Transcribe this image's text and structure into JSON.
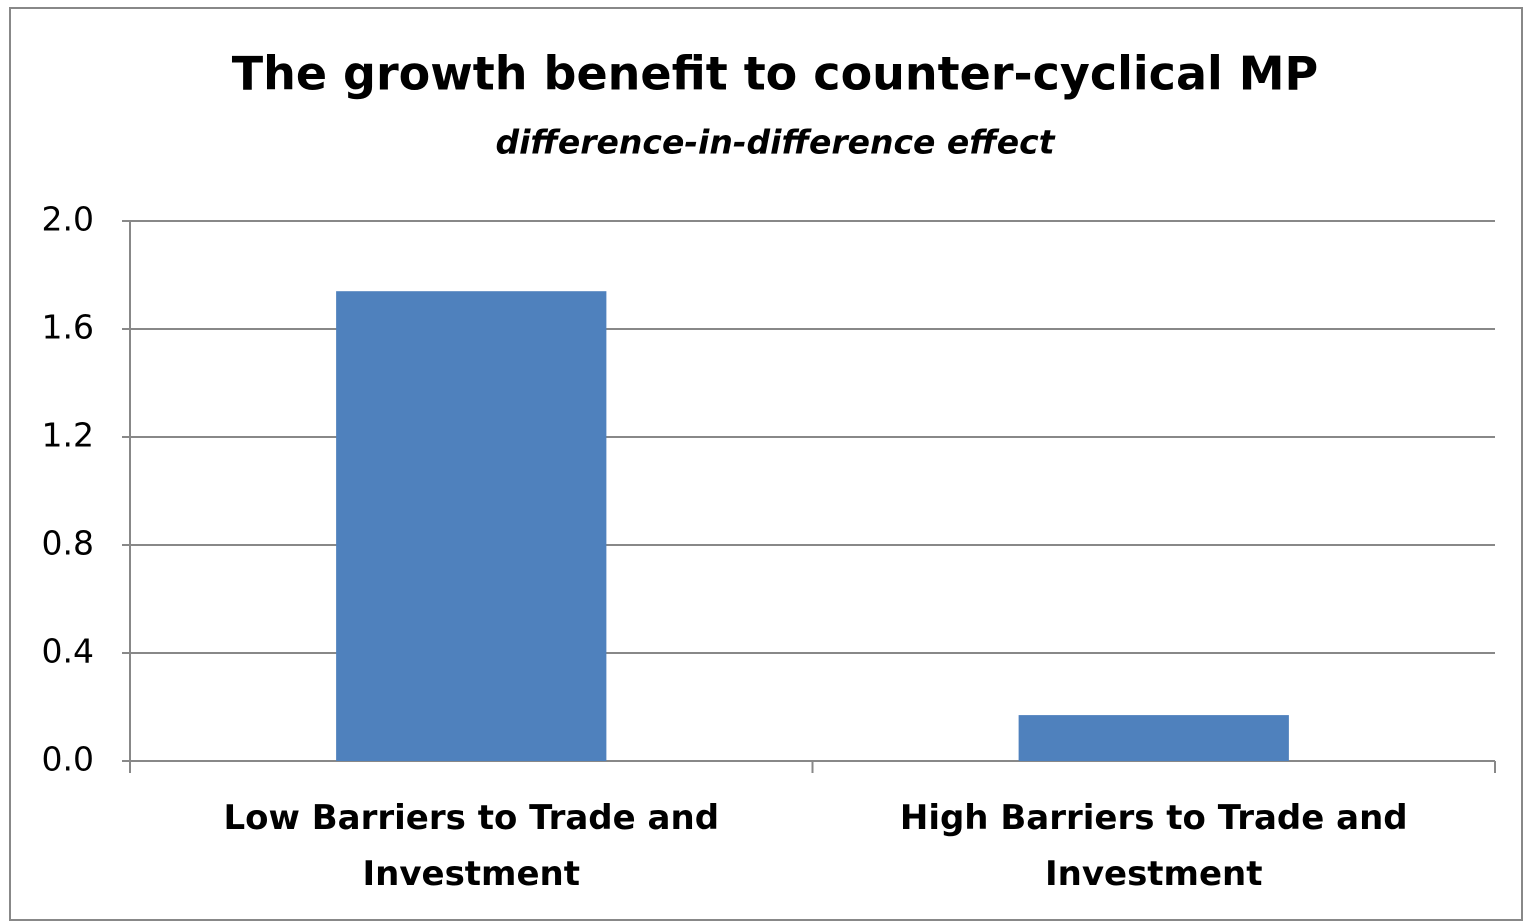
{
  "chart_data": {
    "type": "bar",
    "title": "The growth benefit to counter-cyclical MP",
    "subtitle": "difference-in-difference effect",
    "categories": [
      "Low Barriers to Trade and Investment",
      "High Barriers to Trade and Investment"
    ],
    "values": [
      1.74,
      0.17
    ],
    "color": "#4f81bd",
    "ylim": [
      0,
      2
    ],
    "yticks": [
      {
        "value": 0,
        "label": "0.0"
      },
      0.4,
      0.8,
      1.2,
      1.6,
      {
        "value": 2,
        "label": "2.0"
      }
    ],
    "grid": true
  }
}
